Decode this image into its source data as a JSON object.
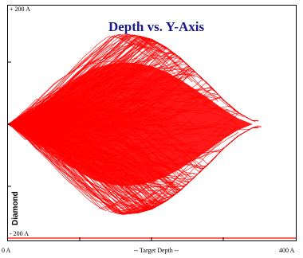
{
  "chart_data": {
    "type": "line",
    "title": "Depth vs. Y-Axis",
    "xlabel": "-- Target Depth --",
    "ylabel": "Diamond",
    "x_tick_labels": [
      "0 A",
      "400 A"
    ],
    "y_tick_labels": [
      "+ 200 A",
      "- 200 A"
    ],
    "xlim": [
      0,
      400
    ],
    "ylim": [
      -200,
      200
    ],
    "grid": false,
    "legend": "none",
    "series": [
      {
        "line_color": "#ff0000",
        "description_of_envelope": {
          "x": [
            0,
            20,
            40,
            60,
            80,
            100,
            120,
            140,
            160,
            180,
            200,
            220,
            240,
            260,
            280,
            300,
            320,
            340
          ],
          "y_upper": [
            0,
            14,
            32,
            55,
            80,
            100,
            116,
            124,
            128,
            126,
            120,
            108,
            92,
            72,
            52,
            30,
            12,
            0
          ],
          "y_lower": [
            0,
            -14,
            -32,
            -55,
            -80,
            -100,
            -116,
            -124,
            -128,
            -126,
            -120,
            -108,
            -92,
            -72,
            -52,
            -30,
            -12,
            0
          ]
        }
      }
    ],
    "colors": {
      "trajectories": "#ff0000",
      "title": "#1a1a8c",
      "axes": "#000000",
      "baseline": "#ff0000"
    }
  }
}
